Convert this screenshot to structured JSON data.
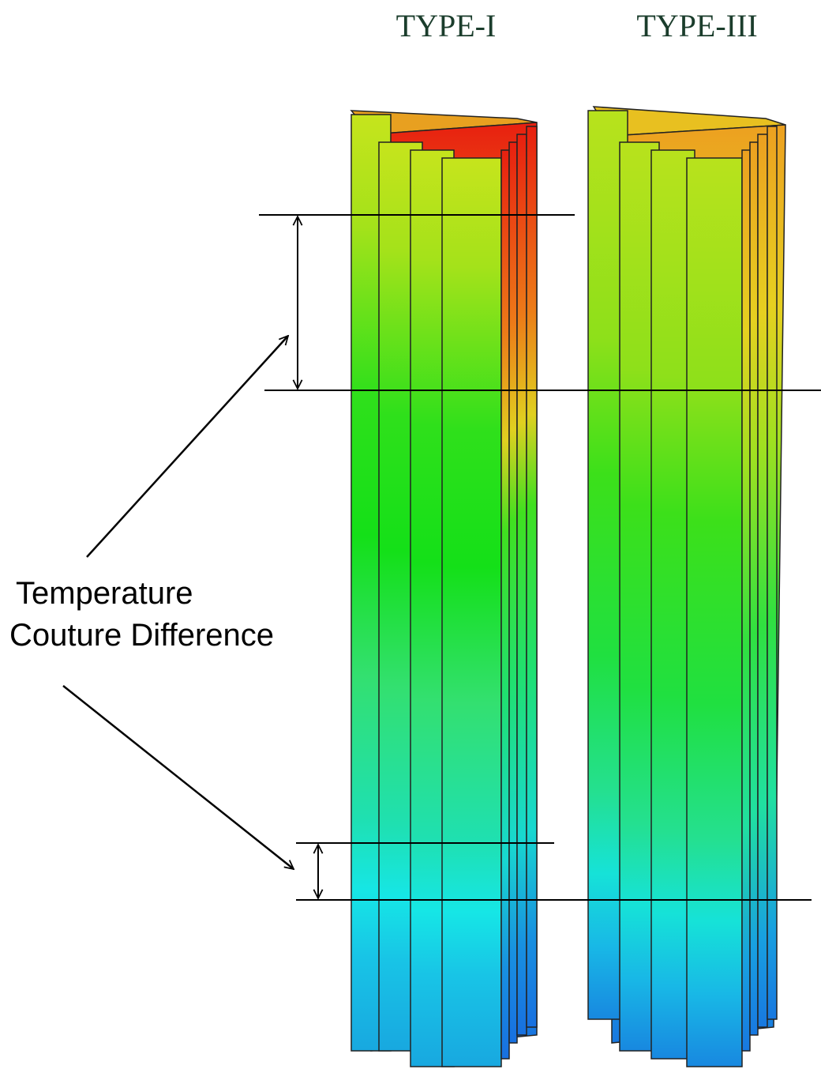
{
  "titles": [
    "TYPE-I",
    "TYPE-III"
  ],
  "annotation": {
    "lines": [
      "Temperature",
      "Couture Difference"
    ]
  }
}
